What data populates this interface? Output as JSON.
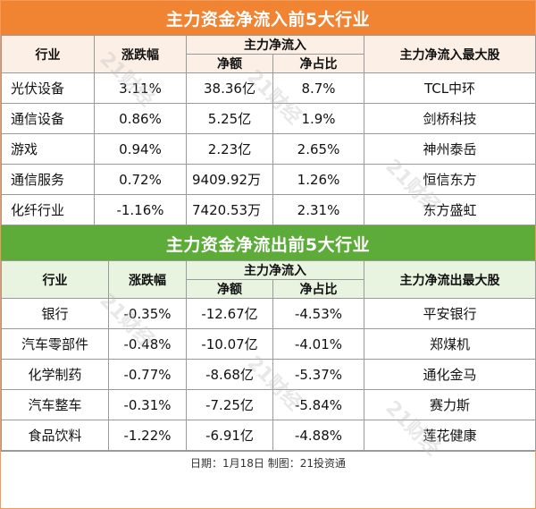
{
  "inflow": {
    "title": "主力资金净流入前5大行业",
    "headers": {
      "industry": "行业",
      "change": "涨跌幅",
      "main_net": "主力净流入",
      "net_amount": "净额",
      "net_ratio": "净占比",
      "top_stock": "主力净流入最大股"
    },
    "rows": [
      {
        "industry": "光伏设备",
        "change": "3.11%",
        "net_amount": "38.36亿",
        "net_ratio": "8.7%",
        "top_stock": "TCL中环"
      },
      {
        "industry": "通信设备",
        "change": "0.86%",
        "net_amount": "5.25亿",
        "net_ratio": "1.9%",
        "top_stock": "剑桥科技"
      },
      {
        "industry": "游戏",
        "change": "0.94%",
        "net_amount": "2.23亿",
        "net_ratio": "2.65%",
        "top_stock": "神州泰岳"
      },
      {
        "industry": "通信服务",
        "change": "0.72%",
        "net_amount": "9409.92万",
        "net_ratio": "1.26%",
        "top_stock": "恒信东方"
      },
      {
        "industry": "化纤行业",
        "change": "-1.16%",
        "net_amount": "7420.53万",
        "net_ratio": "2.31%",
        "top_stock": "东方盛虹"
      }
    ]
  },
  "outflow": {
    "title": "主力资金净流出前5大行业",
    "headers": {
      "industry": "行业",
      "change": "涨跌幅",
      "main_net": "主力净流入",
      "net_amount": "净额",
      "net_ratio": "净占比",
      "top_stock": "主力净流出最大股"
    },
    "rows": [
      {
        "industry": "银行",
        "change": "-0.35%",
        "net_amount": "-12.67亿",
        "net_ratio": "-4.53%",
        "top_stock": "平安银行"
      },
      {
        "industry": "汽车零部件",
        "change": "-0.48%",
        "net_amount": "-10.07亿",
        "net_ratio": "-4.01%",
        "top_stock": "郑煤机"
      },
      {
        "industry": "化学制药",
        "change": "-0.77%",
        "net_amount": "-8.68亿",
        "net_ratio": "-5.37%",
        "top_stock": "通化金马"
      },
      {
        "industry": "汽车整车",
        "change": "-0.31%",
        "net_amount": "-7.25亿",
        "net_ratio": "-5.84%",
        "top_stock": "赛力斯"
      },
      {
        "industry": "食品饮料",
        "change": "-1.22%",
        "net_amount": "-6.91亿",
        "net_ratio": "-4.88%",
        "top_stock": "莲花健康"
      }
    ]
  },
  "footer": "日期：1月18日 制图：21投资通",
  "watermark": "21财经",
  "colors": {
    "inflow_banner": "#f08432",
    "outflow_banner": "#5dac3a"
  }
}
